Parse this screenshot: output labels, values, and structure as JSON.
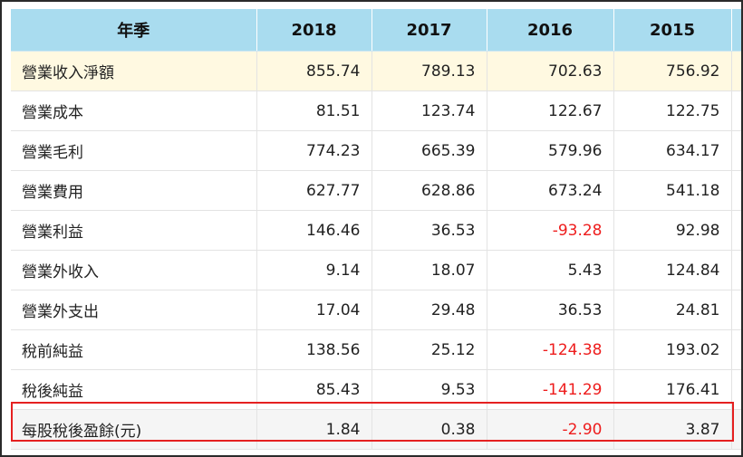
{
  "table": {
    "headers": [
      "年季",
      "2018",
      "2017",
      "2016",
      "2015"
    ],
    "rows": [
      {
        "label": "營業收入淨額",
        "values": [
          "855.74",
          "789.13",
          "702.63",
          "756.92"
        ]
      },
      {
        "label": "營業成本",
        "values": [
          "81.51",
          "123.74",
          "122.67",
          "122.75"
        ]
      },
      {
        "label": "營業毛利",
        "values": [
          "774.23",
          "665.39",
          "579.96",
          "634.17"
        ]
      },
      {
        "label": "營業費用",
        "values": [
          "627.77",
          "628.86",
          "673.24",
          "541.18"
        ]
      },
      {
        "label": "營業利益",
        "values": [
          "146.46",
          "36.53",
          "-93.28",
          "92.98"
        ]
      },
      {
        "label": "營業外收入",
        "values": [
          "9.14",
          "18.07",
          "5.43",
          "124.84"
        ]
      },
      {
        "label": "營業外支出",
        "values": [
          "17.04",
          "29.48",
          "36.53",
          "24.81"
        ]
      },
      {
        "label": "稅前純益",
        "values": [
          "138.56",
          "25.12",
          "-124.38",
          "193.02"
        ]
      },
      {
        "label": "稅後純益",
        "values": [
          "85.43",
          "9.53",
          "-141.29",
          "176.41"
        ]
      },
      {
        "label": "每股稅後盈餘(元)",
        "values": [
          "1.84",
          "0.38",
          "-2.90",
          "3.87"
        ]
      }
    ]
  },
  "colors": {
    "header_bg": "#a9dcef",
    "highlight_row_bg": "#fff9e1",
    "negative_text": "#ee1c1c",
    "eps_box_border": "#e52020"
  }
}
